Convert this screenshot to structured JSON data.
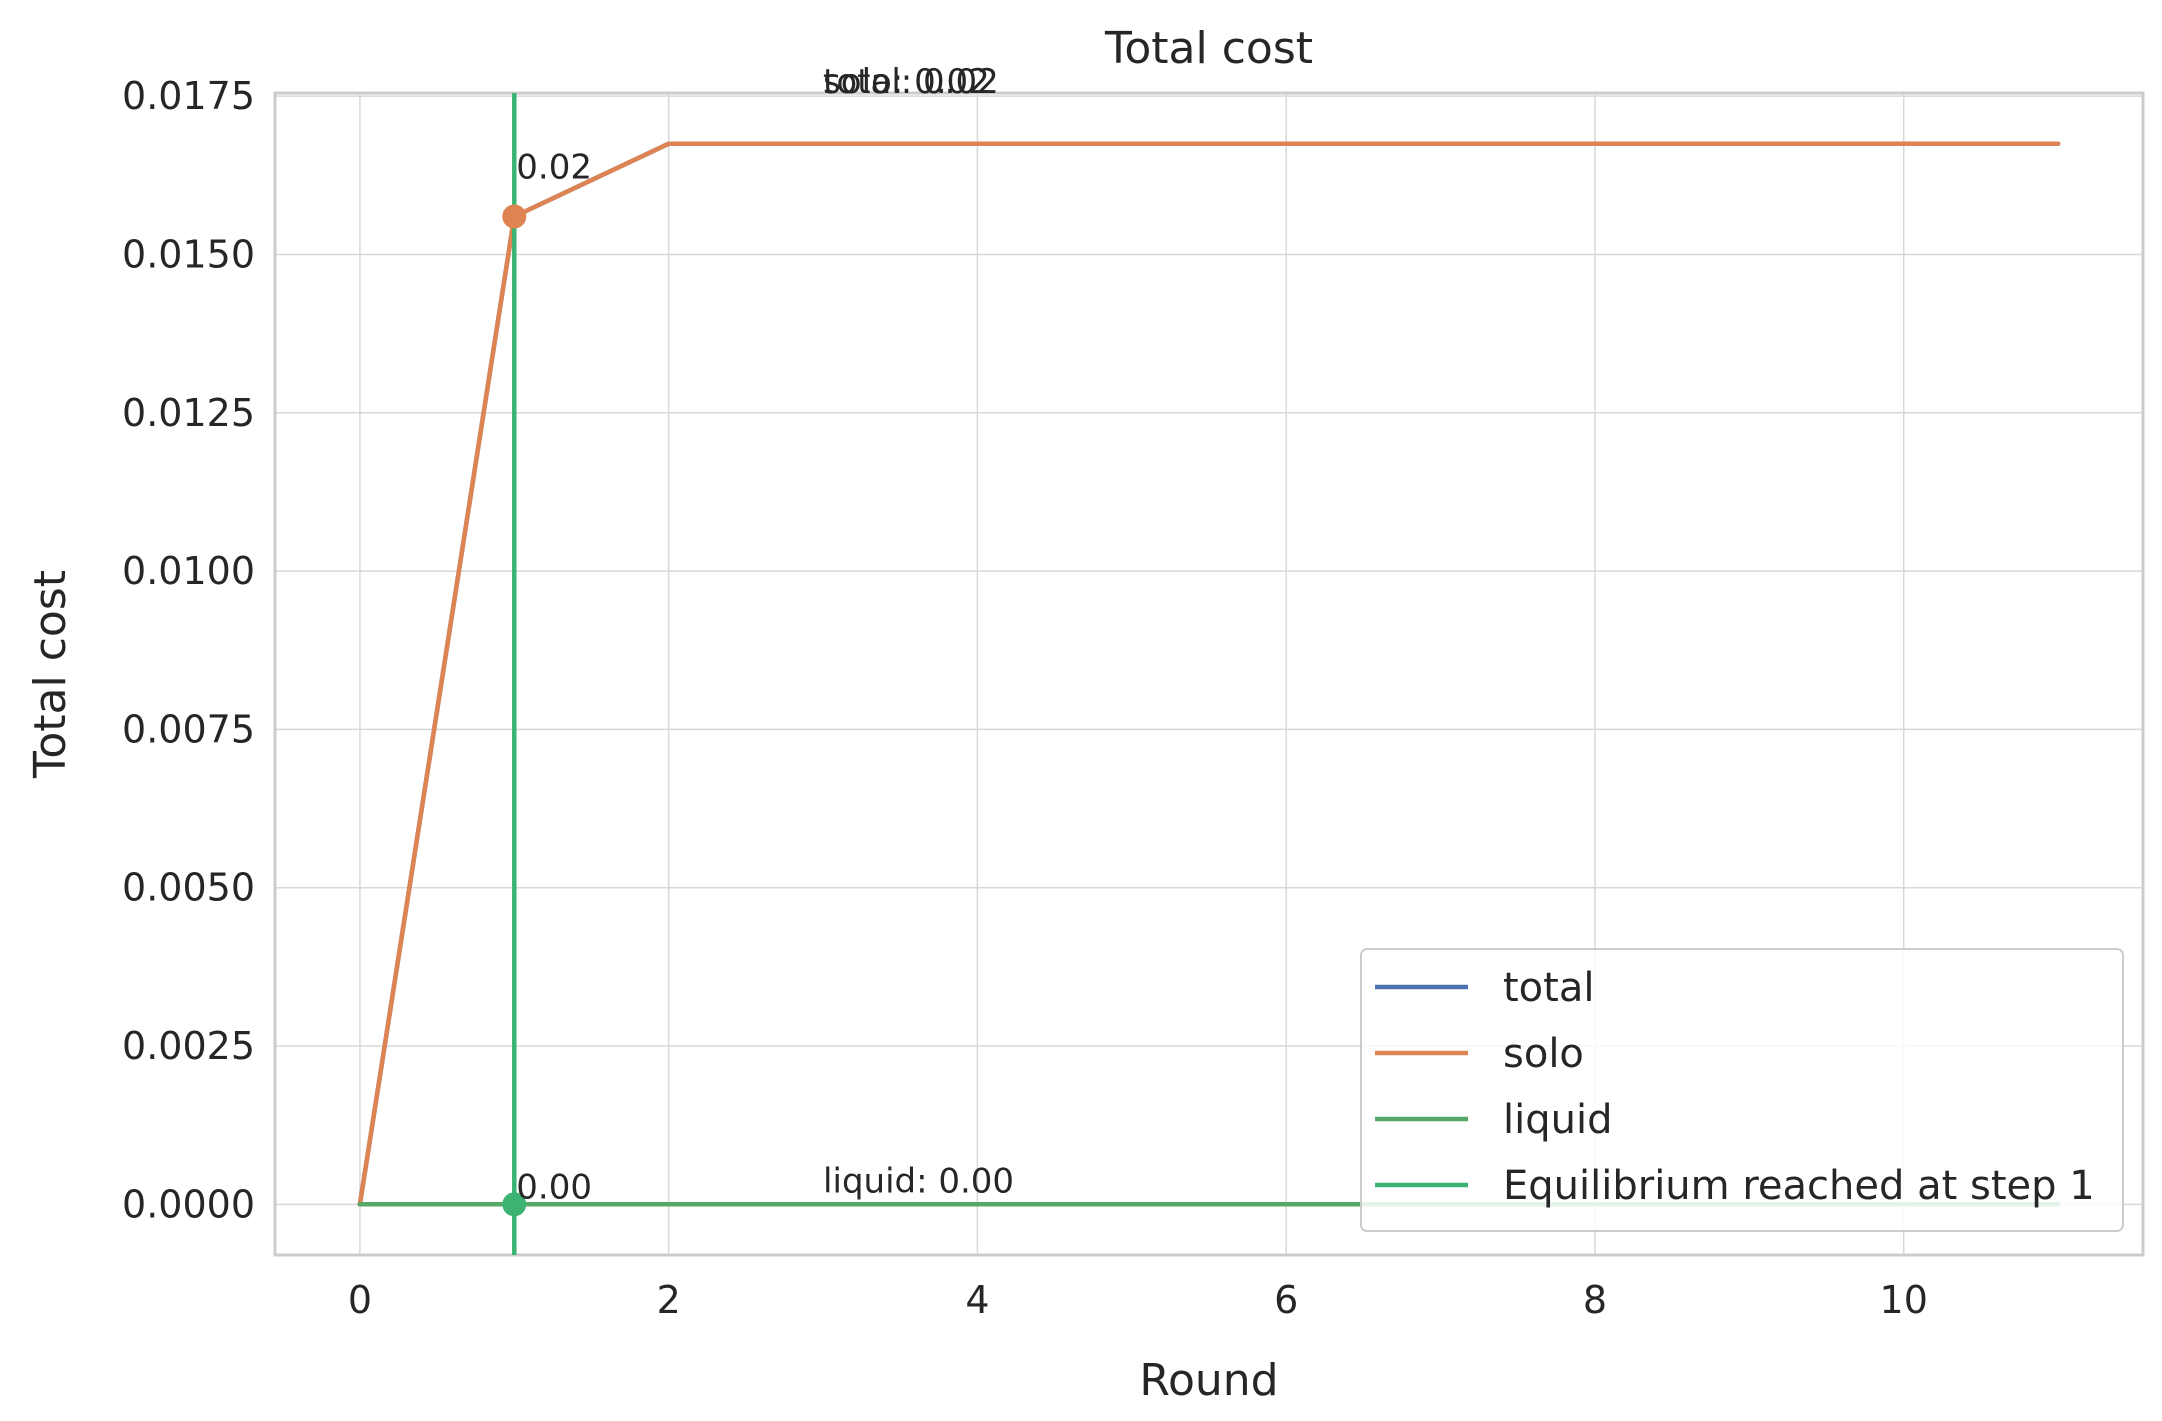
{
  "chart_data": {
    "type": "line",
    "title": "Total cost",
    "xlabel": "Round",
    "ylabel": "Total cost",
    "xlim": [
      -0.55,
      11.55
    ],
    "ylim": [
      -0.0008,
      0.01755
    ],
    "xticks": [
      0,
      2,
      4,
      6,
      8,
      10
    ],
    "xtick_labels": [
      "0",
      "2",
      "4",
      "6",
      "8",
      "10"
    ],
    "yticks": [
      0,
      0.0025,
      0.005,
      0.0075,
      0.01,
      0.0125,
      0.015,
      0.0175
    ],
    "ytick_labels": [
      "0.0000",
      "0.0025",
      "0.0050",
      "0.0075",
      "0.0100",
      "0.0125",
      "0.0150",
      "0.0175"
    ],
    "grid": true,
    "legend_position": "lower-right",
    "x": [
      0,
      1,
      2,
      3,
      4,
      5,
      6,
      7,
      8,
      9,
      10,
      11
    ],
    "series": [
      {
        "name": "total",
        "color": "#4c72b0",
        "values": [
          0,
          0.0156,
          0.01675,
          0.01675,
          0.01675,
          0.01675,
          0.01675,
          0.01675,
          0.01675,
          0.01675,
          0.01675,
          0.01675
        ]
      },
      {
        "name": "solo",
        "color": "#dd8452",
        "values": [
          0,
          0.0156,
          0.01675,
          0.01675,
          0.01675,
          0.01675,
          0.01675,
          0.01675,
          0.01675,
          0.01675,
          0.01675,
          0.01675
        ]
      },
      {
        "name": "liquid",
        "color": "#55a868",
        "values": [
          0,
          0,
          0,
          0,
          0,
          0,
          0,
          0,
          0,
          0,
          0,
          0
        ]
      }
    ],
    "equilibrium": {
      "label": "Equilibrium reached at step 1",
      "x": 1,
      "color": "#3cb371"
    },
    "markers": [
      {
        "x": 1,
        "y": 0.0156,
        "color": "#dd8452",
        "label": "0.02"
      },
      {
        "x": 1,
        "y": 0,
        "color": "#3cb371",
        "label": "0.00"
      }
    ],
    "text_annotations": [
      {
        "x": 3,
        "y": 0.0175,
        "text": "total: 0.02"
      },
      {
        "x": 3,
        "y": 0.0175,
        "text": "solo: 0.02"
      },
      {
        "x": 3,
        "y": 0,
        "text": "liquid: 0.00"
      }
    ],
    "legend": [
      {
        "label": "total",
        "color": "#4c72b0"
      },
      {
        "label": "solo",
        "color": "#dd8452"
      },
      {
        "label": "liquid",
        "color": "#55a868"
      },
      {
        "label": "Equilibrium reached at step 1",
        "color": "#3cb371"
      }
    ]
  }
}
